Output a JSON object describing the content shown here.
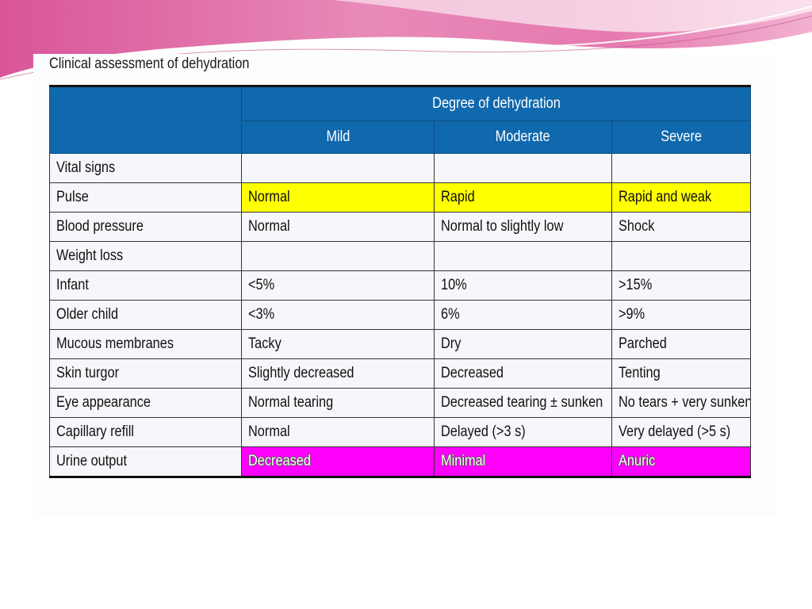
{
  "title": "Clinical assessment of dehydration",
  "header": {
    "group": "Degree of dehydration",
    "columns": [
      "Mild",
      "Moderate",
      "Severe"
    ]
  },
  "rows": [
    {
      "label": "Vital signs",
      "mild": "",
      "moderate": "",
      "severe": ""
    },
    {
      "label": "Pulse",
      "mild": "Normal",
      "moderate": "Rapid",
      "severe": "Rapid and weak"
    },
    {
      "label": "Blood pressure",
      "mild": "Normal",
      "moderate": "Normal to slightly low",
      "severe": "Shock"
    },
    {
      "label": "Weight loss",
      "mild": "",
      "moderate": "",
      "severe": ""
    },
    {
      "label": "Infant",
      "mild": "<5%",
      "moderate": "10%",
      "severe": ">15%"
    },
    {
      "label": "Older child",
      "mild": "<3%",
      "moderate": "6%",
      "severe": ">9%"
    },
    {
      "label": "Mucous membranes",
      "mild": "Tacky",
      "moderate": "Dry",
      "severe": "Parched"
    },
    {
      "label": "Skin turgor",
      "mild": "Slightly decreased",
      "moderate": "Decreased",
      "severe": "Tenting"
    },
    {
      "label": "Eye appearance",
      "mild": "Normal tearing",
      "moderate": "Decreased tearing ± sunken",
      "severe": "No tears + very sunken"
    },
    {
      "label": "Capillary refill",
      "mild": "Normal",
      "moderate": "Delayed (>3 s)",
      "severe": "Very delayed (>5 s)"
    },
    {
      "label": "Urine output",
      "mild": "Decreased",
      "moderate": "Minimal",
      "severe": "Anuric"
    }
  ],
  "colors": {
    "header_blue": "#1068ad",
    "highlight_yellow": "#ffff00",
    "highlight_magenta": "#ff00ff",
    "banner_pink": "#e0609a"
  }
}
